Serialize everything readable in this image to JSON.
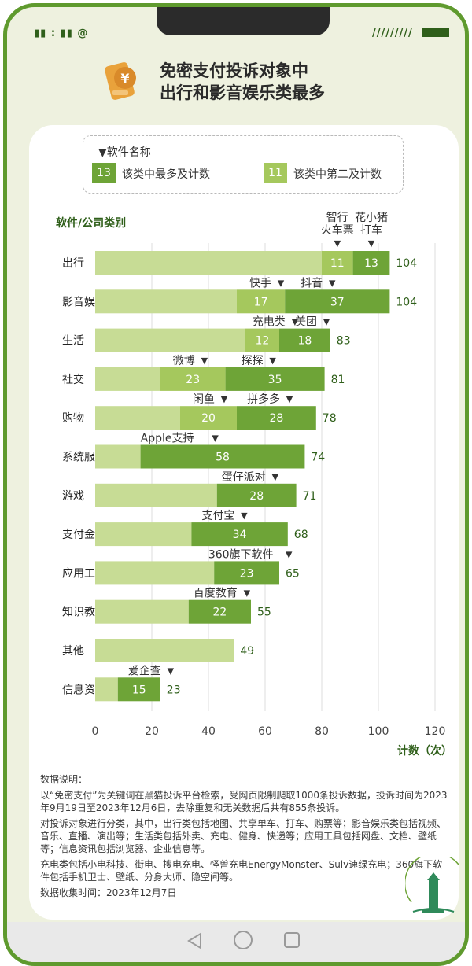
{
  "status": {
    "left": "▮▮ : ▮▮  @",
    "right": "/////////"
  },
  "header": {
    "title_line1": "免密支付投诉对象中",
    "title_line2": "出行和影音娱乐类最多",
    "icon_glyph": "¥"
  },
  "legend": {
    "title": "▼软件名称",
    "primary": {
      "sample": "13",
      "label": "该类中最多及计数"
    },
    "secondary": {
      "sample": "11",
      "label": "该类中第二及计数"
    }
  },
  "chart_data": {
    "type": "bar",
    "orientation": "horizontal",
    "stacked": true,
    "ylabel": "软件/公司类别",
    "xlabel": "计数（次）",
    "xlim": [
      0,
      120
    ],
    "xticks": [
      0,
      20,
      40,
      60,
      80,
      100,
      120
    ],
    "categories": [
      "出行",
      "影音娱乐",
      "生活",
      "社交",
      "购物",
      "系统服务",
      "游戏",
      "支付金融",
      "应用工具",
      "知识教育",
      "其他",
      "信息资讯"
    ],
    "totals": [
      104,
      104,
      83,
      81,
      78,
      74,
      71,
      68,
      65,
      55,
      49,
      23
    ],
    "top": [
      {
        "app": "花小猪打车",
        "value": 13
      },
      {
        "app": "抖音",
        "value": 37
      },
      {
        "app": "美团",
        "value": 18
      },
      {
        "app": "探探",
        "value": 35
      },
      {
        "app": "拼多多",
        "value": 28
      },
      {
        "app": "Apple支持",
        "value": 58
      },
      {
        "app": "蛋仔派对",
        "value": 28
      },
      {
        "app": "支付宝",
        "value": 34
      },
      {
        "app": "360旗下软件",
        "value": 23
      },
      {
        "app": "百度教育",
        "value": 22
      },
      null,
      {
        "app": "爱企查",
        "value": 15
      }
    ],
    "second": [
      {
        "app": "智行火车票",
        "value": 11
      },
      {
        "app": "快手",
        "value": 17
      },
      {
        "app": "充电类",
        "value": 12
      },
      {
        "app": "微博",
        "value": 23
      },
      {
        "app": "闲鱼",
        "value": 20
      },
      null,
      null,
      null,
      null,
      null,
      null,
      null
    ],
    "colors": {
      "rest": "#c7dc95",
      "top": "#6ea437",
      "second": "#a5c85d",
      "ink": "#2f5f1a",
      "axis": "#8a8a8a"
    }
  },
  "notes": {
    "p1": "数据说明：",
    "p2": "以“免密支付”为关键词在黑猫投诉平台检索，受网页限制爬取1000条投诉数据，投诉时间为2023年9月19日至2023年12月6日，去除重复和无关数据后共有855条投诉。",
    "p3": "对投诉对象进行分类，其中，出行类包括地图、共享单车、打车、购票等；影音娱乐类包括视频、音乐、直播、演出等；生活类包括外卖、充电、健身、快递等；应用工具包括网盘、文档、壁纸等；信息资讯包括浏览器、企业信息等。",
    "p4": "充电类包括小电科技、街电、搜电充电、怪兽充电EnergyMonster、Sulv速绿充电；360旗下软件包括手机卫士、壁纸、分身大师、隐空间等。",
    "p5": "数据收集时间：2023年12月7日"
  }
}
